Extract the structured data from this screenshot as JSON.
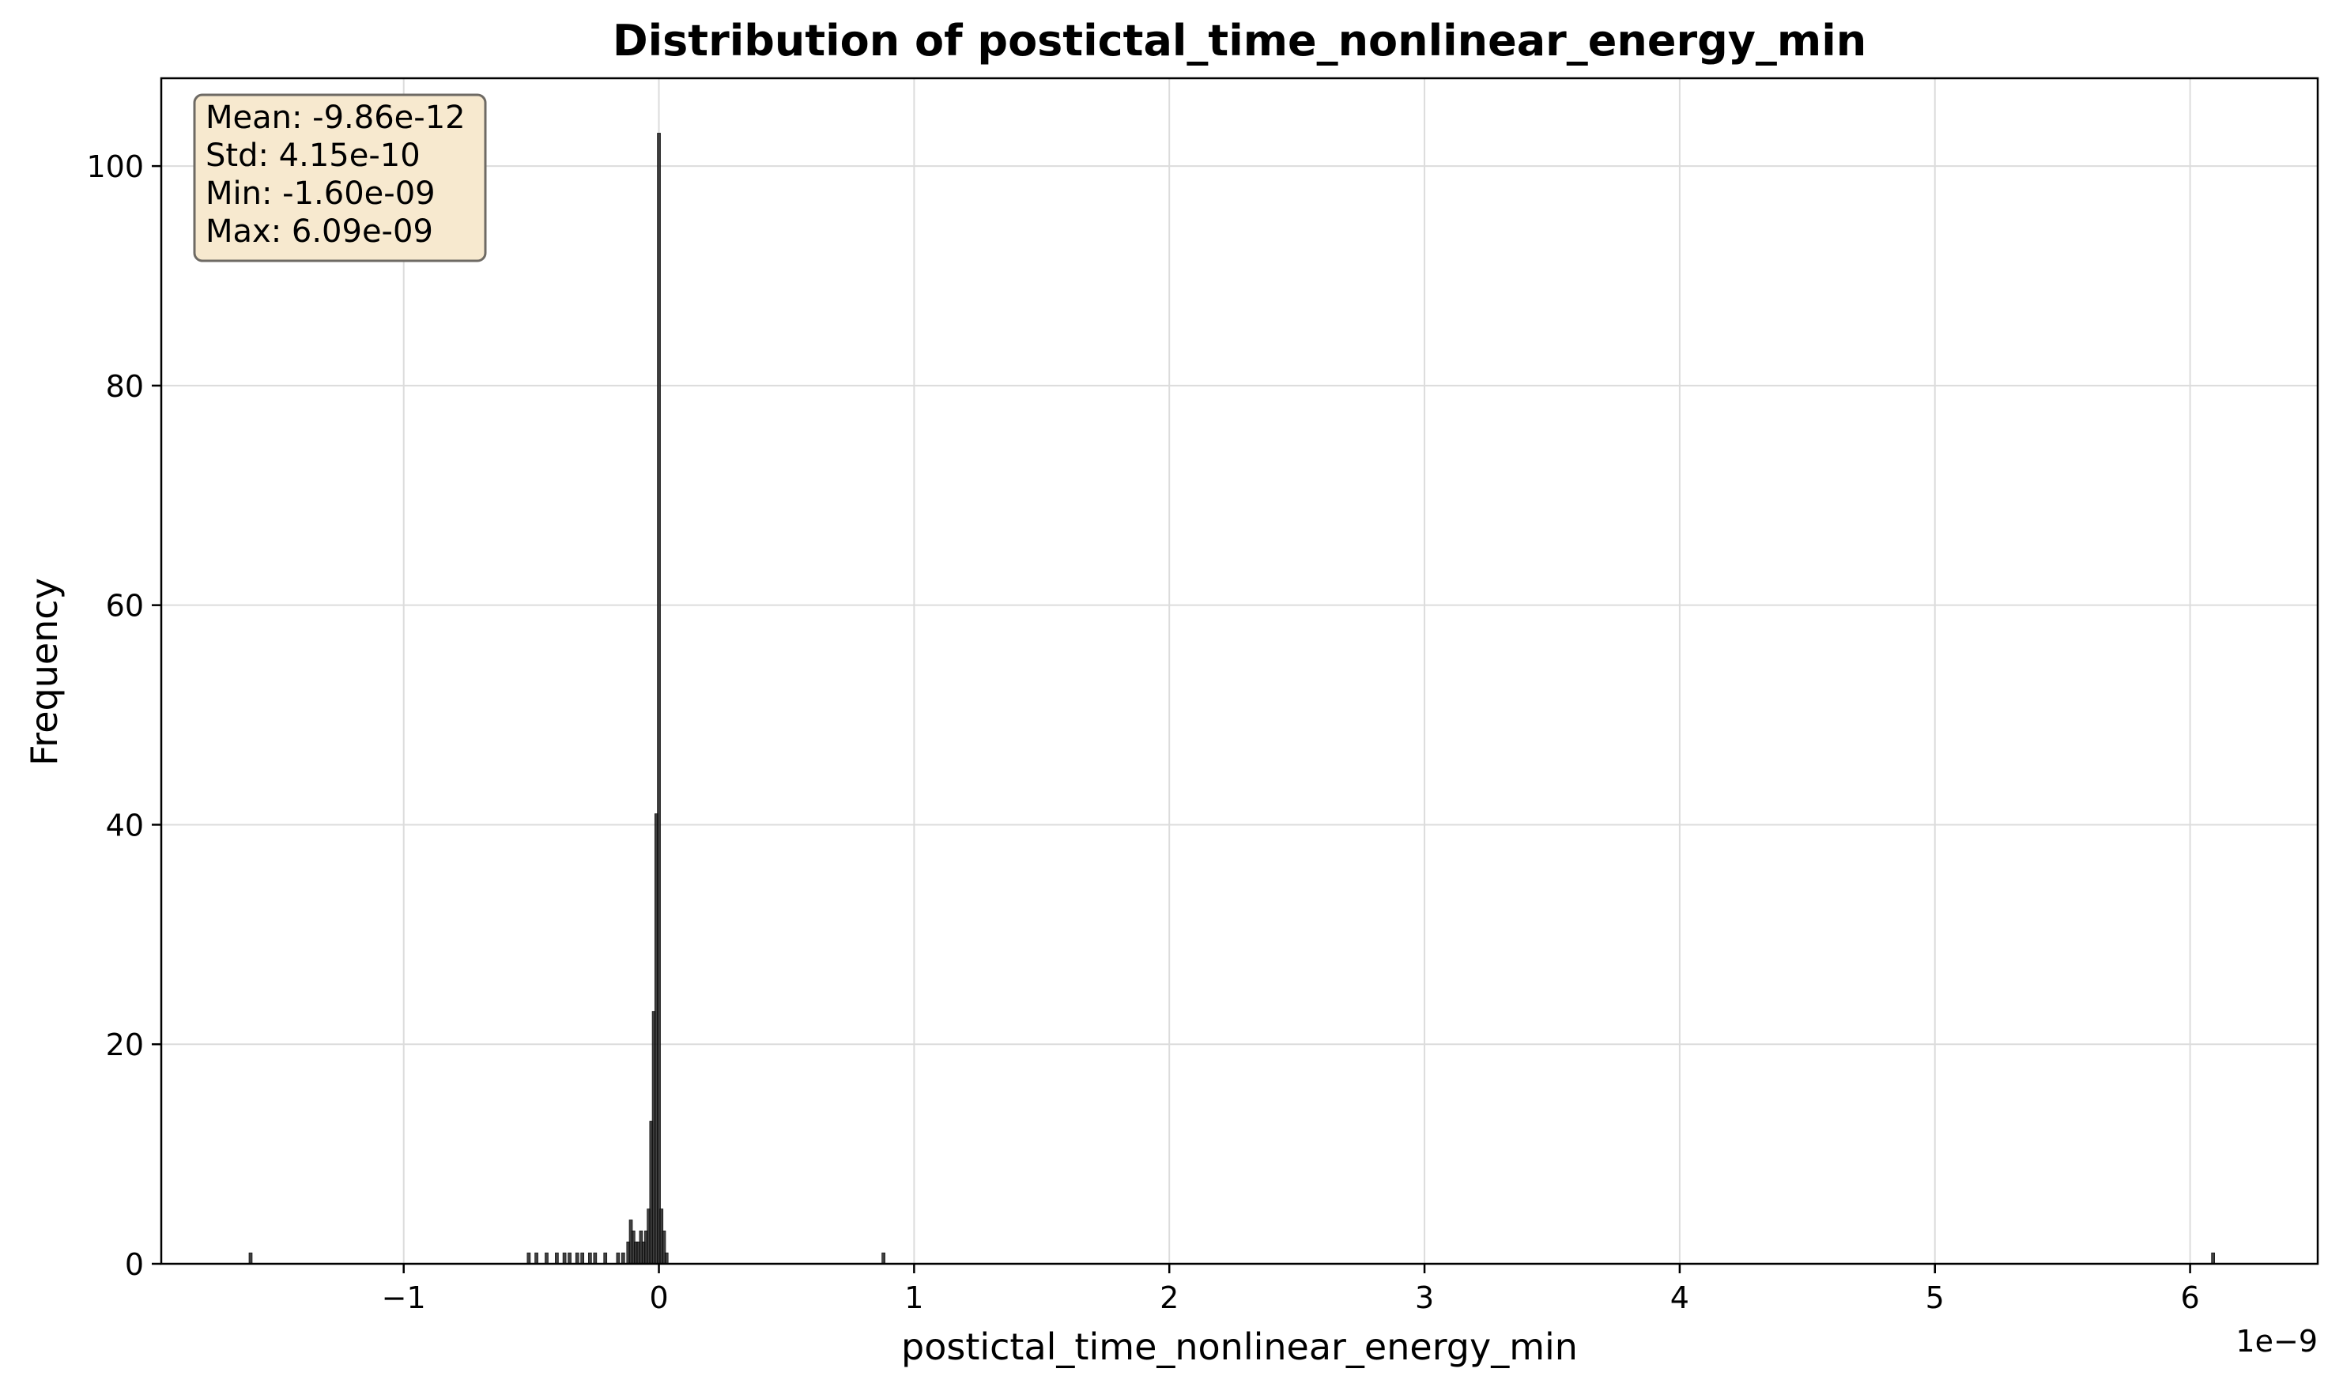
{
  "chart_data": {
    "type": "bar",
    "title": "Distribution of postictal_time_nonlinear_energy_min",
    "xlabel": "postictal_time_nonlinear_energy_min",
    "ylabel": "Frequency",
    "x_offset_label": "1e−9",
    "xlim": [
      -1.95,
      6.5
    ],
    "ylim": [
      0,
      108
    ],
    "x_ticks": [
      -1,
      0,
      1,
      2,
      3,
      4,
      5,
      6
    ],
    "x_tick_labels": [
      "−1",
      "0",
      "1",
      "2",
      "3",
      "4",
      "5",
      "6"
    ],
    "y_ticks": [
      0,
      20,
      40,
      60,
      80,
      100
    ],
    "y_tick_labels": [
      "0",
      "20",
      "40",
      "60",
      "80",
      "100"
    ],
    "grid": true,
    "bar_color": "#1f1f1f",
    "bars": [
      {
        "x": -1.6,
        "count": 1
      },
      {
        "x": -0.51,
        "count": 1
      },
      {
        "x": -0.48,
        "count": 1
      },
      {
        "x": -0.44,
        "count": 1
      },
      {
        "x": -0.4,
        "count": 1
      },
      {
        "x": -0.37,
        "count": 1
      },
      {
        "x": -0.35,
        "count": 1
      },
      {
        "x": -0.32,
        "count": 1
      },
      {
        "x": -0.3,
        "count": 1
      },
      {
        "x": -0.27,
        "count": 1
      },
      {
        "x": -0.25,
        "count": 1
      },
      {
        "x": -0.21,
        "count": 1
      },
      {
        "x": -0.16,
        "count": 1
      },
      {
        "x": -0.14,
        "count": 1
      },
      {
        "x": -0.12,
        "count": 2
      },
      {
        "x": -0.11,
        "count": 4
      },
      {
        "x": -0.1,
        "count": 3
      },
      {
        "x": -0.09,
        "count": 2
      },
      {
        "x": -0.08,
        "count": 2
      },
      {
        "x": -0.07,
        "count": 3
      },
      {
        "x": -0.06,
        "count": 2
      },
      {
        "x": -0.05,
        "count": 3
      },
      {
        "x": -0.04,
        "count": 5
      },
      {
        "x": -0.03,
        "count": 13
      },
      {
        "x": -0.02,
        "count": 23
      },
      {
        "x": -0.01,
        "count": 41
      },
      {
        "x": 0.0,
        "count": 103
      },
      {
        "x": 0.01,
        "count": 5
      },
      {
        "x": 0.02,
        "count": 3
      },
      {
        "x": 0.03,
        "count": 1
      },
      {
        "x": 0.88,
        "count": 1
      },
      {
        "x": 6.09,
        "count": 1
      }
    ],
    "stats": {
      "mean": "Mean: -9.86e-12",
      "std": "Std: 4.15e-10",
      "min": "Min: -1.60e-09",
      "max": "Max: 6.09e-09"
    },
    "stats_box_fill": "#f7e9cf",
    "stats_box_edge": "#6e6a64"
  }
}
